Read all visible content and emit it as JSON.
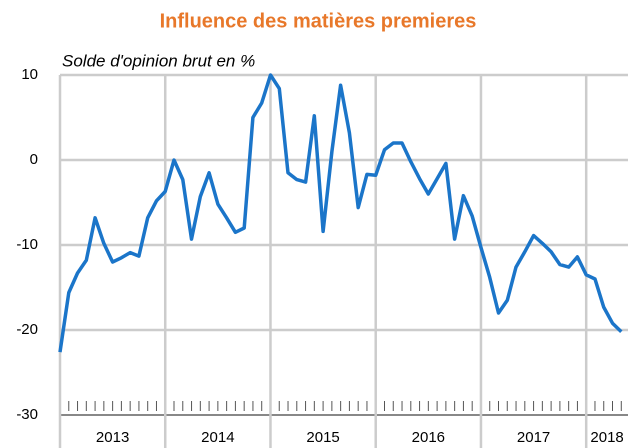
{
  "chart_data": {
    "type": "line",
    "title": "Influence des matières premieres",
    "subtitle": "Solde d'opinion brut en %",
    "categories": [
      "2013",
      null,
      null,
      null,
      null,
      null,
      null,
      null,
      null,
      null,
      null,
      null,
      "2014",
      null,
      null,
      null,
      null,
      null,
      null,
      null,
      null,
      null,
      null,
      null,
      "2015",
      null,
      null,
      null,
      null,
      null,
      null,
      null,
      null,
      null,
      null,
      null,
      "2016",
      null,
      null,
      null,
      null,
      null,
      null,
      null,
      null,
      null,
      null,
      null,
      "2017",
      null,
      null,
      null,
      null,
      null,
      null,
      null,
      null,
      null,
      null,
      null,
      "2018",
      null,
      null,
      null,
      null
    ],
    "values": [
      -22.6,
      -15.6,
      -13.3,
      -11.8,
      -6.8,
      -9.8,
      -12.0,
      -11.5,
      -10.9,
      -11.3,
      -6.8,
      -4.8,
      -3.7,
      0,
      -2.3,
      -9.3,
      -4.3,
      -1.5,
      -5.2,
      -6.8,
      -8.5,
      -8.0,
      5.0,
      6.7,
      10.0,
      8.4,
      -1.5,
      -2.3,
      -2.6,
      5.2,
      -8.4,
      1.0,
      8.8,
      3.2,
      -5.6,
      -1.7,
      -1.8,
      1.2,
      2.0,
      2.0,
      -0.2,
      -2.2,
      -4.0,
      -2.2,
      -0.4,
      -9.3,
      -4.2,
      -6.6,
      -10.3,
      -13.8,
      -18.0,
      -16.5,
      -12.6,
      -10.8,
      -8.9,
      -9.8,
      -10.8,
      -12.3,
      -12.6,
      -11.4,
      -13.5,
      -14.0,
      -17.3,
      -19.2,
      -20.2
    ],
    "color": "#1b75c9",
    "ylim": [
      -30,
      10
    ],
    "yticks": [
      -30,
      -20,
      -10,
      0,
      10
    ],
    "grid": true
  }
}
